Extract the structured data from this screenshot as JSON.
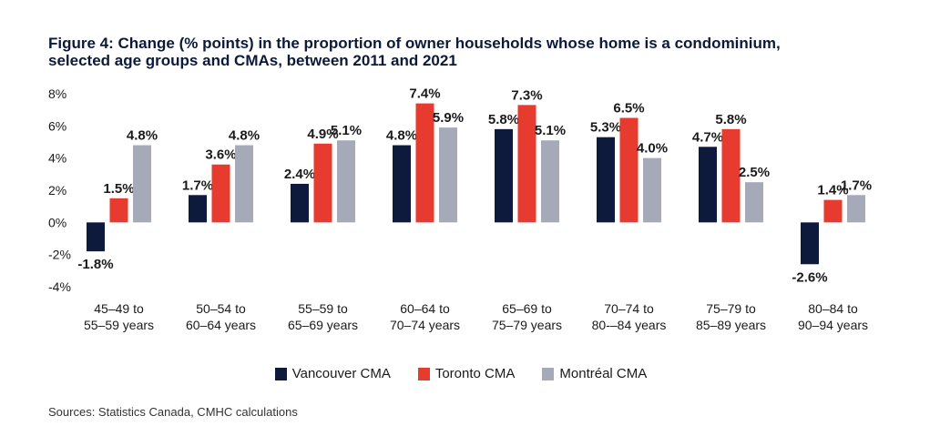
{
  "title_line1": "Figure 4: Change (% points) in the proportion of owner households whose home is a condominium,",
  "title_line2": "selected age groups and CMAs, between 2011 and 2021",
  "source": "Sources: Statistics Canada, CMHC calculations",
  "colors": {
    "vancouver": "#0d1a3c",
    "toronto": "#e63b2e",
    "montreal": "#a6a9b8"
  },
  "chart_data": {
    "type": "bar",
    "categories": [
      [
        "45–49 to",
        "55–59 years"
      ],
      [
        "50–54 to",
        "60–64 years"
      ],
      [
        "55–59 to",
        "65–69 years"
      ],
      [
        "60–64 to",
        "70–74 years"
      ],
      [
        "65–69 to",
        "75–79 years"
      ],
      [
        "70–74 to",
        "80-–84 years"
      ],
      [
        "75–79 to",
        "85–89 years"
      ],
      [
        "80–84 to",
        "90–94 years"
      ]
    ],
    "series": [
      {
        "name": "Vancouver CMA",
        "values": [
          -1.8,
          1.7,
          2.4,
          4.8,
          5.8,
          5.3,
          4.7,
          -2.6
        ],
        "labels": [
          "-1.8%",
          "1.7%",
          "2.4%",
          "4.8%",
          "5.8%",
          "5.3%",
          "4.7%",
          "-2.6%"
        ]
      },
      {
        "name": "Toronto CMA",
        "values": [
          1.5,
          3.6,
          4.9,
          7.4,
          7.3,
          6.5,
          5.8,
          1.4
        ],
        "labels": [
          "1.5%",
          "3.6%",
          "4.9%",
          "7.4%",
          "7.3%",
          "6.5%",
          "5.8%",
          "1.4%"
        ]
      },
      {
        "name": "Montréal CMA",
        "values": [
          4.8,
          4.8,
          5.1,
          5.9,
          5.1,
          4.0,
          2.5,
          1.7
        ],
        "labels": [
          "4.8%",
          "4.8%",
          "5.1%",
          "5.9%",
          "5.1%",
          "4.0%",
          "2.5%",
          "1.7%"
        ]
      }
    ],
    "yticks": [
      "8%",
      "6%",
      "4%",
      "2%",
      "0%",
      "-2%",
      "-4%"
    ],
    "ytick_values": [
      8,
      6,
      4,
      2,
      0,
      -2,
      -4
    ],
    "ylim": [
      -4,
      8
    ],
    "grid": false,
    "legend_position": "bottom"
  }
}
